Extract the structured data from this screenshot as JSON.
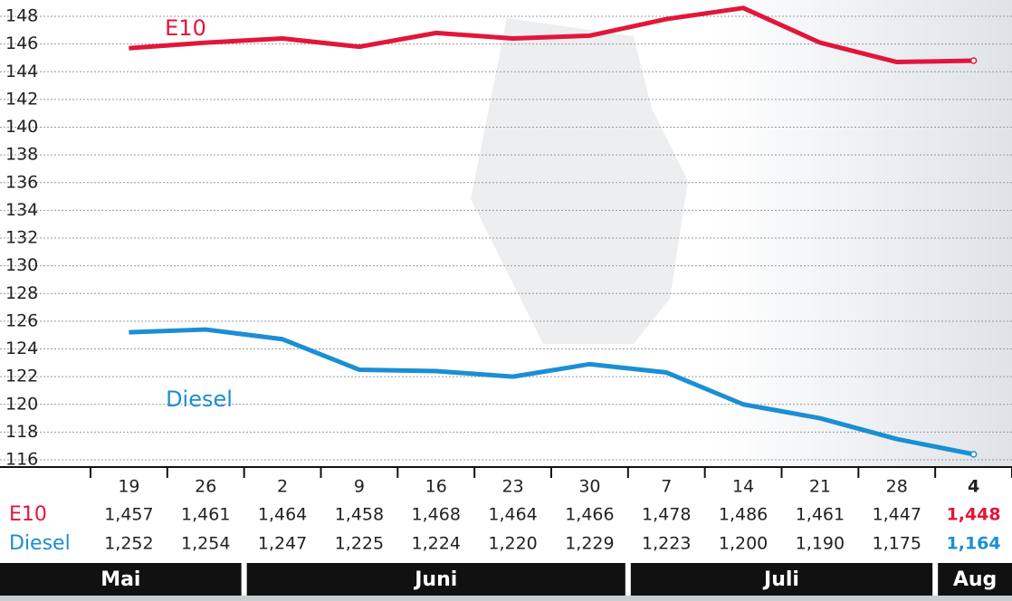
{
  "chart_data": {
    "type": "line",
    "categories": [
      "19",
      "26",
      "2",
      "9",
      "16",
      "23",
      "30",
      "7",
      "14",
      "21",
      "28",
      "4"
    ],
    "months": [
      "Mai",
      "Mai",
      "Juni",
      "Juni",
      "Juni",
      "Juni",
      "Juni",
      "Juli",
      "Juli",
      "Juli",
      "Juli",
      "Aug"
    ],
    "series": [
      {
        "name": "E10",
        "color": "#e2163b",
        "values": [
          145.7,
          146.1,
          146.4,
          145.8,
          146.8,
          146.4,
          146.6,
          147.8,
          148.6,
          146.1,
          144.7,
          144.8
        ],
        "value_labels": [
          "1,457",
          "1,461",
          "1,464",
          "1,458",
          "1,468",
          "1,464",
          "1,466",
          "1,478",
          "1,486",
          "1,461",
          "1,447",
          "1,448"
        ]
      },
      {
        "name": "Diesel",
        "color": "#1a8fd4",
        "values": [
          125.2,
          125.4,
          124.7,
          122.5,
          122.4,
          122.0,
          122.9,
          122.3,
          120.0,
          119.0,
          117.5,
          116.4
        ],
        "value_labels": [
          "1,252",
          "1,254",
          "1,247",
          "1,225",
          "1,224",
          "1,220",
          "1,229",
          "1,223",
          "1,200",
          "1,190",
          "1,175",
          "1,164"
        ]
      }
    ],
    "ylim": [
      116,
      148
    ],
    "yticks": [
      116,
      118,
      120,
      122,
      124,
      126,
      128,
      130,
      132,
      134,
      136,
      138,
      140,
      142,
      144,
      146,
      148
    ],
    "grid": true
  }
}
